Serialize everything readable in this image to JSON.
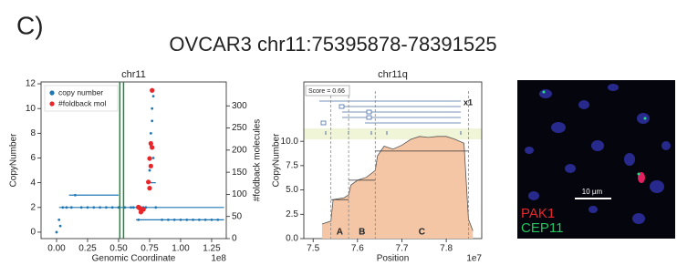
{
  "panel_label": "C)",
  "title": "OVCAR3 chr11:75395878-78391525",
  "chart_data": [
    {
      "type": "scatter",
      "title": "chr11",
      "xlabel": "Genomic Coordinate",
      "ylabel": "CopyNumber",
      "y2label": "#foldback molecules",
      "x_offset_label": "1e8",
      "xlim": [
        -0.125,
        1.368
      ],
      "xticks": [
        {
          "value": 0,
          "label": "0.00"
        },
        0.25,
        {
          "value": 0.5,
          "label": "0.50"
        },
        0.75,
        {
          "value": 1,
          "label": "1.00"
        },
        1.25
      ],
      "ylim": [
        -0.52,
        12.15
      ],
      "yticks": [
        0,
        2,
        4,
        6,
        8,
        10,
        12
      ],
      "y2lim": [
        0,
        354
      ],
      "y2ticks": [
        0,
        50,
        100,
        150,
        200,
        250,
        300
      ],
      "legend": "upper left",
      "vlines": [
        0.51,
        0.54
      ],
      "vline_color": "#1a8a3a",
      "segments": [
        {
          "x": [
            0.1,
            0.5
          ],
          "y": 3
        },
        {
          "x": [
            0.02,
            1.35
          ],
          "y": 2
        },
        {
          "x": [
            0.64,
            1.35
          ],
          "y": 1
        },
        {
          "x": [
            0.74,
            0.8
          ],
          "y": 4
        }
      ],
      "series": [
        {
          "name": "copy number",
          "color": "#1f77b4",
          "x": [
            0.0,
            0.02,
            0.05,
            0.08,
            0.12,
            0.15,
            0.2,
            0.25,
            0.3,
            0.35,
            0.4,
            0.45,
            0.5,
            0.55,
            0.6,
            0.62,
            0.65,
            0.68,
            0.7,
            0.72,
            0.74,
            0.75,
            0.76,
            0.77,
            0.78,
            0.77,
            0.76,
            0.78,
            0.8,
            0.85,
            0.9,
            0.95,
            1.0,
            1.05,
            1.1,
            1.15,
            1.2,
            1.25,
            1.3,
            0.03,
            0.66,
            0.7
          ],
          "values": [
            0,
            1,
            2,
            2,
            2,
            3,
            2,
            2,
            2,
            2,
            2,
            2,
            2,
            2,
            2,
            2,
            2,
            2,
            2,
            2,
            4,
            5,
            7,
            9,
            11,
            10,
            8,
            6,
            2,
            1,
            1,
            1,
            1,
            1,
            1,
            1,
            1,
            1,
            1,
            0.5,
            1,
            1.8
          ]
        },
        {
          "name": "#foldback mol",
          "color": "#e8262a",
          "axis": "y2",
          "x": [
            0.77,
            0.76,
            0.77,
            0.75,
            0.76,
            0.74,
            0.75,
            0.66,
            0.67,
            0.7,
            0.68
          ],
          "values": [
            335,
            215,
            206,
            181,
            164,
            128,
            114,
            71,
            69,
            66,
            60
          ]
        }
      ]
    },
    {
      "type": "area",
      "title": "chr11q",
      "xlabel": "Position",
      "ylabel": "CopyNumber",
      "x_offset_label": "1e7",
      "xlim": [
        7.479,
        7.88
      ],
      "xticks": [
        7.5,
        7.6,
        7.7,
        7.8
      ],
      "ylim": [
        0,
        16.1
      ],
      "yticks": [
        {
          "value": 0,
          "label": "0.0"
        },
        2.5,
        {
          "value": 5,
          "label": "5.0"
        },
        7.5,
        {
          "value": 10,
          "label": "10.0"
        }
      ],
      "color": "#f5c6a5",
      "line_color": "#555555",
      "x": [
        7.52,
        7.54,
        7.545,
        7.57,
        7.58,
        7.585,
        7.6,
        7.62,
        7.64,
        7.645,
        7.66,
        7.68,
        7.7,
        7.72,
        7.74,
        7.76,
        7.78,
        7.8,
        7.82,
        7.84,
        7.85,
        7.86
      ],
      "values": [
        1.5,
        1.8,
        4,
        4.2,
        4.5,
        5.5,
        6,
        6.3,
        7,
        8.5,
        9.5,
        9.2,
        9.6,
        10.2,
        10.5,
        10.4,
        10.5,
        10.5,
        10.2,
        9.8,
        2,
        0.8
      ],
      "vlines": [
        7.54,
        7.58,
        7.64,
        7.85
      ],
      "segments": [
        {
          "x": [
            7.54,
            7.58
          ],
          "y": 4
        },
        {
          "x": [
            7.58,
            7.64
          ],
          "y": 6
        },
        {
          "x": [
            7.64,
            7.85
          ],
          "y": 9
        }
      ],
      "regions": [
        {
          "label": "A",
          "x": 7.56
        },
        {
          "label": "B",
          "x": 7.61
        },
        {
          "label": "C",
          "x": 7.745
        }
      ],
      "annotations": [
        "Score = 0.66",
        "x1"
      ]
    }
  ],
  "image": {
    "labels": [
      "PAK1",
      "CEP11"
    ],
    "scale_bar": "10 µm"
  }
}
